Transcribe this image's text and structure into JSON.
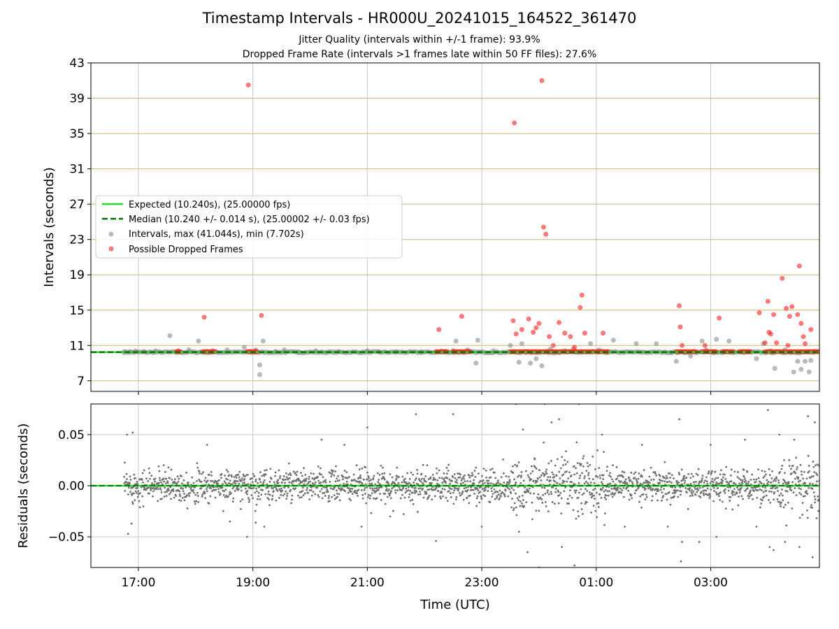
{
  "header": {
    "title": "Timestamp Intervals - HR000U_20241015_164522_361470",
    "subtitle_1": "Jitter Quality (intervals within +/-1 frame): 93.9%",
    "subtitle_2": "Dropped Frame Rate (intervals >1 frames late within 50 FF files): 27.6%"
  },
  "colors": {
    "expected": "#22dd22",
    "median": "#0a6e0a",
    "intervals": "#8c8c8c",
    "dropped": "#ff2020",
    "residuals": "#707070",
    "hline": "#cbb86a",
    "grid": "#c8c8c8"
  },
  "chart_data": [
    {
      "type": "scatter",
      "panel": "top",
      "ylabel": "Intervals (seconds)",
      "xlabel": "",
      "x_unit": "hours since 00:00 UTC of 2024-10-15",
      "xlim": [
        16.17,
        28.9
      ],
      "ylim": [
        5.8,
        43
      ],
      "yticks": [
        7,
        11,
        15,
        19,
        23,
        27,
        31,
        35,
        39,
        43
      ],
      "xticks": [
        17,
        19,
        21,
        23,
        25,
        27
      ],
      "xtick_labels": [
        "17:00",
        "19:00",
        "21:00",
        "23:00",
        "01:00",
        "03:00"
      ],
      "hlines": [
        7,
        11,
        15,
        19,
        23,
        27,
        31,
        35,
        39,
        43
      ],
      "grid": "x",
      "legend_position": "center-left",
      "expected": {
        "name": "Expected (10.240s), (25.00000 fps)",
        "value": 10.24
      },
      "median": {
        "name": "Median (10.240 +/- 0.014 s), (25.00002 +/- 0.03 fps)",
        "value": 10.24
      },
      "series": [
        {
          "name": "Intervals, max (41.044s), min (7.702s)",
          "points": [
            [
              16.75,
              10.3
            ],
            [
              16.85,
              10.3
            ],
            [
              16.95,
              10.35
            ],
            [
              17.1,
              10.3
            ],
            [
              17.3,
              10.4
            ],
            [
              17.55,
              12.1
            ],
            [
              17.7,
              10.4
            ],
            [
              17.88,
              10.5
            ],
            [
              18.05,
              11.5
            ],
            [
              18.3,
              10.4
            ],
            [
              18.55,
              10.5
            ],
            [
              18.85,
              10.8
            ],
            [
              19.05,
              10.5
            ],
            [
              19.12,
              8.8
            ],
            [
              19.12,
              7.7
            ],
            [
              19.18,
              11.5
            ],
            [
              19.4,
              10.3
            ],
            [
              19.55,
              10.5
            ],
            [
              19.8,
              10.3
            ],
            [
              20.1,
              10.4
            ],
            [
              20.5,
              10.3
            ],
            [
              21.0,
              10.4
            ],
            [
              21.2,
              10.3
            ],
            [
              21.5,
              10.3
            ],
            [
              21.95,
              10.3
            ],
            [
              22.3,
              10.35
            ],
            [
              22.5,
              10.4
            ],
            [
              22.55,
              11.5
            ],
            [
              22.75,
              10.5
            ],
            [
              22.9,
              9.0
            ],
            [
              22.93,
              11.6
            ],
            [
              23.2,
              10.4
            ],
            [
              23.5,
              11.0
            ],
            [
              23.55,
              10.3
            ],
            [
              23.65,
              9.1
            ],
            [
              23.7,
              11.2
            ],
            [
              23.85,
              9.0
            ],
            [
              23.95,
              9.5
            ],
            [
              24.05,
              8.7
            ],
            [
              24.2,
              10.6
            ],
            [
              24.45,
              10.4
            ],
            [
              24.6,
              10.6
            ],
            [
              24.9,
              11.2
            ],
            [
              25.05,
              10.5
            ],
            [
              25.3,
              11.6
            ],
            [
              25.7,
              11.2
            ],
            [
              26.05,
              11.2
            ],
            [
              26.3,
              10.2
            ],
            [
              26.4,
              9.2
            ],
            [
              26.65,
              9.8
            ],
            [
              26.85,
              11.5
            ],
            [
              26.92,
              10.5
            ],
            [
              27.1,
              11.7
            ],
            [
              27.32,
              11.5
            ],
            [
              27.8,
              9.5
            ],
            [
              27.92,
              11.2
            ],
            [
              28.05,
              10.4
            ],
            [
              28.12,
              8.4
            ],
            [
              28.3,
              10.5
            ],
            [
              28.45,
              8.0
            ],
            [
              28.52,
              9.2
            ],
            [
              28.58,
              8.3
            ],
            [
              28.65,
              9.2
            ],
            [
              28.72,
              8.0
            ],
            [
              28.75,
              9.3
            ]
          ]
        },
        {
          "name": "Possible Dropped Frames",
          "points": [
            [
              17.7,
              10.3
            ],
            [
              18.15,
              14.2
            ],
            [
              18.2,
              10.3
            ],
            [
              18.3,
              10.3
            ],
            [
              18.92,
              40.5
            ],
            [
              18.95,
              10.3
            ],
            [
              19.05,
              10.3
            ],
            [
              19.15,
              14.4
            ],
            [
              22.25,
              12.8
            ],
            [
              22.35,
              10.3
            ],
            [
              22.5,
              10.3
            ],
            [
              22.65,
              14.3
            ],
            [
              22.75,
              10.3
            ],
            [
              23.55,
              13.8
            ],
            [
              23.57,
              36.2
            ],
            [
              23.6,
              12.3
            ],
            [
              23.7,
              12.8
            ],
            [
              23.78,
              10.3
            ],
            [
              23.82,
              14.0
            ],
            [
              23.9,
              12.5
            ],
            [
              23.95,
              13.0
            ],
            [
              24.0,
              13.5
            ],
            [
              24.05,
              41.0
            ],
            [
              24.08,
              24.4
            ],
            [
              24.12,
              23.6
            ],
            [
              24.15,
              10.3
            ],
            [
              24.18,
              12.0
            ],
            [
              24.25,
              11.0
            ],
            [
              24.35,
              13.6
            ],
            [
              24.45,
              12.4
            ],
            [
              24.55,
              12.0
            ],
            [
              24.62,
              10.8
            ],
            [
              24.72,
              15.3
            ],
            [
              24.75,
              16.7
            ],
            [
              24.8,
              12.4
            ],
            [
              24.95,
              10.3
            ],
            [
              25.05,
              10.3
            ],
            [
              25.12,
              12.4
            ],
            [
              25.2,
              10.3
            ],
            [
              26.45,
              15.5
            ],
            [
              26.47,
              13.1
            ],
            [
              26.5,
              11.0
            ],
            [
              26.55,
              10.3
            ],
            [
              26.7,
              10.3
            ],
            [
              26.9,
              11.0
            ],
            [
              26.95,
              10.3
            ],
            [
              27.05,
              10.3
            ],
            [
              27.15,
              14.1
            ],
            [
              27.25,
              10.3
            ],
            [
              27.55,
              10.3
            ],
            [
              27.65,
              10.3
            ],
            [
              27.85,
              14.7
            ],
            [
              27.95,
              11.3
            ],
            [
              28.0,
              16.0
            ],
            [
              28.02,
              12.5
            ],
            [
              28.05,
              12.3
            ],
            [
              28.1,
              14.5
            ],
            [
              28.15,
              11.3
            ],
            [
              28.25,
              18.6
            ],
            [
              28.32,
              15.2
            ],
            [
              28.35,
              11.0
            ],
            [
              28.38,
              14.3
            ],
            [
              28.42,
              15.4
            ],
            [
              28.52,
              14.5
            ],
            [
              28.55,
              20.0
            ],
            [
              28.58,
              13.5
            ],
            [
              28.62,
              12.0
            ],
            [
              28.65,
              11.2
            ],
            [
              28.7,
              10.3
            ],
            [
              28.75,
              12.8
            ],
            [
              28.82,
              10.3
            ]
          ]
        }
      ]
    },
    {
      "type": "scatter",
      "panel": "bottom",
      "ylabel": "Residuals (seconds)",
      "xlabel": "Time (UTC)",
      "xlim": [
        16.17,
        28.9
      ],
      "ylim": [
        -0.08,
        0.08
      ],
      "yticks": [
        -0.05,
        0.0,
        0.05
      ],
      "ytick_labels": [
        "−0.05",
        "0.00",
        "0.05"
      ],
      "xticks": [
        17,
        19,
        21,
        23,
        25,
        27
      ],
      "xtick_labels": [
        "17:00",
        "19:00",
        "21:00",
        "23:00",
        "01:00",
        "03:00"
      ],
      "grid": "both",
      "zero_line": 0.0,
      "series": [
        {
          "name": "Residuals",
          "x_range": [
            16.75,
            28.9
          ],
          "typical_spread": 0.008,
          "outliers": [
            [
              16.8,
              0.05
            ],
            [
              16.9,
              0.052
            ],
            [
              16.82,
              -0.047
            ],
            [
              16.88,
              -0.037
            ],
            [
              18.2,
              0.04
            ],
            [
              18.6,
              -0.035
            ],
            [
              18.9,
              -0.05
            ],
            [
              19.05,
              -0.036
            ],
            [
              19.2,
              -0.04
            ],
            [
              20.2,
              0.045
            ],
            [
              20.6,
              0.04
            ],
            [
              20.9,
              -0.04
            ],
            [
              21.0,
              0.057
            ],
            [
              21.85,
              0.07
            ],
            [
              21.4,
              -0.03
            ],
            [
              22.2,
              -0.054
            ],
            [
              22.5,
              0.07
            ],
            [
              23.0,
              -0.04
            ],
            [
              23.6,
              0.08
            ],
            [
              23.65,
              -0.045
            ],
            [
              23.72,
              0.055
            ],
            [
              23.8,
              -0.065
            ],
            [
              24.0,
              -0.08
            ],
            [
              24.1,
              0.08
            ],
            [
              24.22,
              0.062
            ],
            [
              24.35,
              0.065
            ],
            [
              24.4,
              -0.06
            ],
            [
              24.62,
              -0.078
            ],
            [
              24.7,
              0.08
            ],
            [
              25.1,
              0.05
            ],
            [
              25.5,
              -0.04
            ],
            [
              25.8,
              0.04
            ],
            [
              26.25,
              -0.04
            ],
            [
              26.45,
              0.065
            ],
            [
              26.48,
              -0.074
            ],
            [
              26.5,
              -0.055
            ],
            [
              26.8,
              -0.055
            ],
            [
              27.0,
              0.04
            ],
            [
              27.1,
              -0.05
            ],
            [
              27.6,
              0.045
            ],
            [
              27.8,
              -0.04
            ],
            [
              28.0,
              0.074
            ],
            [
              28.03,
              -0.06
            ],
            [
              28.1,
              -0.063
            ],
            [
              28.2,
              0.05
            ],
            [
              28.3,
              -0.055
            ],
            [
              28.55,
              -0.06
            ],
            [
              28.7,
              0.068
            ],
            [
              28.78,
              -0.07
            ],
            [
              28.82,
              0.062
            ]
          ]
        },
        {
          "name": "Expected",
          "value": 0.0
        }
      ]
    }
  ],
  "legend": {
    "items": [
      {
        "label": "Expected (10.240s), (25.00000 fps)"
      },
      {
        "label": "Median (10.240 +/- 0.014 s), (25.00002 +/- 0.03 fps)"
      },
      {
        "label": "Intervals, max (41.044s), min (7.702s)"
      },
      {
        "label": "Possible Dropped Frames"
      }
    ]
  }
}
